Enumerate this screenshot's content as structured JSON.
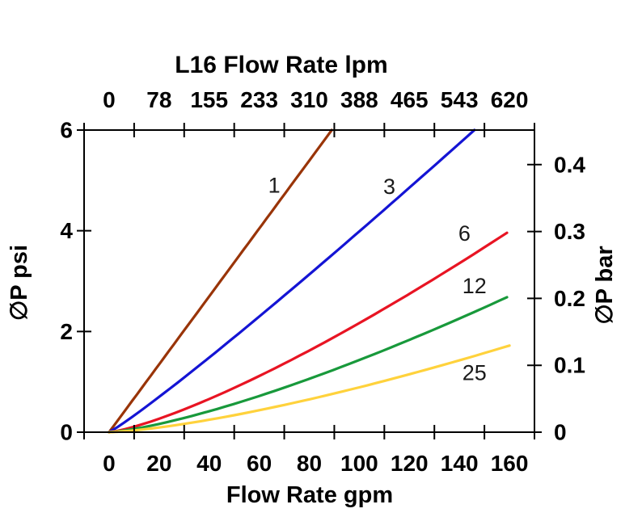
{
  "figure": {
    "background": "#ffffff",
    "axis_color": "#000000"
  },
  "chart_data": {
    "type": "line",
    "title": "L16 Flow Rate lpm",
    "axes": {
      "top": {
        "title": "L16 Flow Rate lpm",
        "tick_labels": [
          "0",
          "78",
          "155",
          "233",
          "310",
          "388",
          "465",
          "543",
          "620"
        ],
        "unit": "lpm"
      },
      "bottom": {
        "title": "Flow Rate gpm",
        "tick_labels": [
          "0",
          "20",
          "40",
          "60",
          "80",
          "100",
          "120",
          "140",
          "160"
        ],
        "unit": "gpm",
        "range": [
          0,
          160
        ]
      },
      "left": {
        "title": "∅P psi",
        "tick_labels": [
          "0",
          "2",
          "4",
          "6"
        ],
        "tick_values": [
          0,
          2,
          4,
          6
        ],
        "range": [
          0,
          6
        ]
      },
      "right": {
        "title": "∅P bar",
        "tick_labels": [
          "0",
          "0.1",
          "0.2",
          "0.3",
          "0.4"
        ],
        "tick_values": [
          0,
          0.1,
          0.2,
          0.3,
          0.4
        ],
        "range": [
          0,
          0.452
        ]
      }
    },
    "grid": false,
    "legend": "inline-curve-labels",
    "series": [
      {
        "label": "1",
        "color": "#993408",
        "max_gpm": 89,
        "max_psi": 6.0,
        "curve_exponent": 1.0,
        "label_at": {
          "gpm": 66,
          "psi": 4.9
        }
      },
      {
        "label": "3",
        "color": "#1414d4",
        "max_gpm": 146,
        "max_psi": 6.0,
        "curve_exponent": 1.08,
        "label_at": {
          "gpm": 112,
          "psi": 4.88
        }
      },
      {
        "label": "6",
        "color": "#e81423",
        "max_gpm": 159,
        "max_psi": 3.96,
        "curve_exponent": 1.3,
        "label_at": {
          "gpm": 142,
          "psi": 3.95
        }
      },
      {
        "label": "12",
        "color": "#18993b",
        "max_gpm": 159,
        "max_psi": 2.68,
        "curve_exponent": 1.35,
        "label_at": {
          "gpm": 146,
          "psi": 2.9
        }
      },
      {
        "label": "25",
        "color": "#ffd23c",
        "max_gpm": 160,
        "max_psi": 1.72,
        "curve_exponent": 1.4,
        "label_at": {
          "gpm": 146,
          "psi": 1.18
        }
      }
    ]
  }
}
